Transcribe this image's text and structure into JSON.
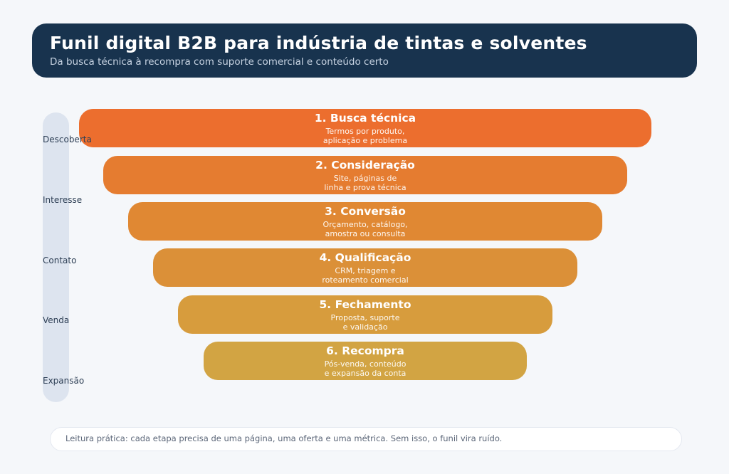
{
  "page": {
    "bg_color": "#F5F7FA"
  },
  "header": {
    "title": "Funil digital B2B para indústria de tintas e solventes",
    "subtitle": "Da busca técnica à recompra com suporte comercial e conteúdo certo",
    "bg_color": "#18334E"
  },
  "stage_rail": {
    "color": "#DDE4EF",
    "labels": [
      "Descoberta",
      "Interesse",
      "Contato",
      "Venda",
      "Expansão"
    ]
  },
  "funnel": {
    "stages": [
      {
        "title": "1. Busca técnica",
        "subtitle": "Termos por produto,\naplicação e problema",
        "color": "#EC6E2E"
      },
      {
        "title": "2. Consideração",
        "subtitle": "Site, páginas de\nlinha e prova técnica",
        "color": "#E57C30"
      },
      {
        "title": "3. Conversão",
        "subtitle": "Orçamento, catálogo,\namostra ou consulta",
        "color": "#E08833"
      },
      {
        "title": "4. Qualificação",
        "subtitle": "CRM, triagem e\nroteamento comercial",
        "color": "#DB9038"
      },
      {
        "title": "5. Fechamento",
        "subtitle": "Proposta, suporte\ne validação",
        "color": "#D79C3D"
      },
      {
        "title": "6. Recompra",
        "subtitle": "Pós-venda, conteúdo\ne expansão da conta",
        "color": "#D2A443"
      }
    ]
  },
  "footnote": {
    "text": "Leitura prática: cada etapa precisa de uma página, uma oferta e uma métrica. Sem isso, o funil vira ruído."
  }
}
